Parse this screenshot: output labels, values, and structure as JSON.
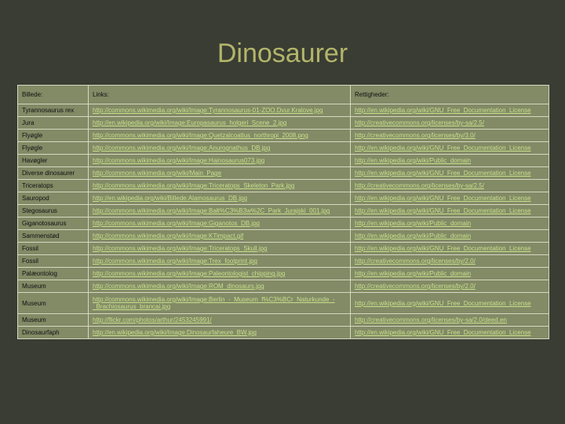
{
  "title": "Dinosaurer",
  "headers": {
    "c1": "Billede:",
    "c2": "Links:",
    "c3": "Rettigheder:"
  },
  "rows": [
    {
      "c1": "Tyrannosaurus rex",
      "c2": "http://commons.wikimedia.org/wiki/Image:Tyrannosaurus-01-ZOO.Dvur.Kralove.jpg",
      "c3": "http://en.wikipedia.org/wiki/GNU_Free_Documentation_License"
    },
    {
      "c1": "Jura",
      "c2": "http://en.wikipedia.org/wiki/Image:Europasaurus_holgeri_Scene_2.jpg",
      "c3": "http://creativecommons.org/licenses/by-sa/2.5/"
    },
    {
      "c1": "Flyøgle",
      "c2": "http://commons.wikimedia.org/wiki/Image:Quetzalcoatlus_northropi_2008.png",
      "c3": "http://creativecommons.org/licenses/by/3.0/"
    },
    {
      "c1": "Flyøgle",
      "c2": "http://commons.wikimedia.org/wiki/Image:Anurognathus_DB.jpg",
      "c3": "http://en.wikipedia.org/wiki/GNU_Free_Documentation_License"
    },
    {
      "c1": "Havøgler",
      "c2": "http://commons.wikimedia.org/wiki/Image:Hainosaurus073.jpg",
      "c3": "http://en.wikipedia.org/wiki/Public_domain"
    },
    {
      "c1": "Diverse dinosaurer",
      "c2": "http://commons.wikimedia.org/wiki/Main_Page",
      "c3": "http://en.wikipedia.org/wiki/GNU_Free_Documentation_License"
    },
    {
      "c1": "Triceratops",
      "c2": "http://commons.wikimedia.org/wiki/Image:Triceratops_Skeleton_Park.jpg",
      "c3": "http://creativecommons.org/licenses/by-sa/2.5/"
    },
    {
      "c1": "Sauropod",
      "c2": "http://en.wikipedia.org/wiki/Billede:Alamosaurus_DB.jpg",
      "c3": "http://en.wikipedia.org/wiki/GNU_Free_Documentation_License"
    },
    {
      "c1": "Stegosaurus",
      "c2": "http://commons.wikimedia.org/wiki/Image:Bałt%C3%B3w%2C_Park_Jurajski_001.jpg",
      "c3": "http://en.wikipedia.org/wiki/GNU_Free_Documentation_License"
    },
    {
      "c1": "Giganotosaurus",
      "c2": "http://commons.wikimedia.org/wiki/Image:Giganotos_DB.jpg",
      "c3": "http://en.wikipedia.org/wiki/Public_domain"
    },
    {
      "c1": "Sammenstød",
      "c2": "http://commons.wikimedia.org/wiki/Image:KTimpact.gif",
      "c3": "http://en.wikipedia.org/wiki/Public_domain"
    },
    {
      "c1": "Fossil",
      "c2": "http://commons.wikimedia.org/wiki/Image:Triceratops_Skull.jpg",
      "c3": "http://en.wikipedia.org/wiki/GNU_Free_Documentation_License"
    },
    {
      "c1": "Fossil",
      "c2": "http://commons.wikimedia.org/wiki/Image:Trex_footprint.jpg",
      "c3": "http://creativecommons.org/licenses/by/2.0/"
    },
    {
      "c1": "Palæontolog",
      "c2": "http://commons.wikimedia.org/wiki/Image:Paleontologist_chipping.jpg",
      "c3": "http://en.wikipedia.org/wiki/Public_domain"
    },
    {
      "c1": "Museum",
      "c2": "http://commons.wikimedia.org/wiki/Image:ROM_dinosaurs.jpg",
      "c3": "http://creativecommons.org/licenses/by/2.0/"
    },
    {
      "c1": "Museum",
      "c2": "http://commons.wikimedia.org/wiki/Image:Berlin_-_Museum_f%C3%BCr_Naturkunde_-_Brachiosaurus_brancai.jpg",
      "c3": "http://en.wikipedia.org/wiki/GNU_Free_Documentation_License",
      "tall": true
    },
    {
      "c1": "Museum",
      "c2": "http://flickr.com/photos/arthur/2453245991/",
      "c3": "http://creativecommons.org/licenses/by-sa/2.0/deed.en"
    },
    {
      "c1": "Dinosaurfaph",
      "c2": "http://en.wikipedia.org/wiki/Image:Dinosaurfaheure_BW.jpg",
      "c3": "http://en.wikipedia.org/wiki/GNU_Free_Documentation_License"
    }
  ]
}
